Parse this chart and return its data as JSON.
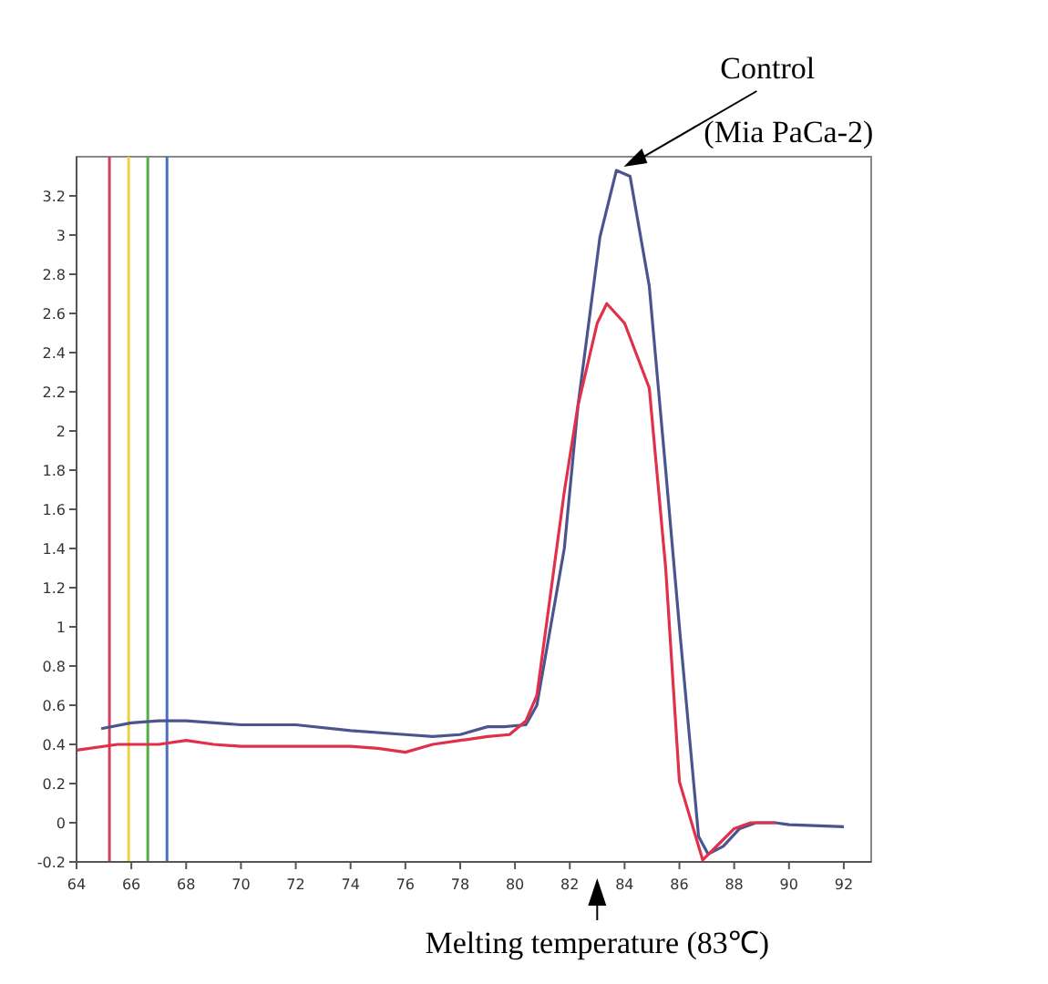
{
  "chart_data": {
    "type": "line",
    "xlim": [
      64,
      93
    ],
    "ylim": [
      -0.2,
      3.4
    ],
    "xticks": [
      64,
      66,
      68,
      70,
      72,
      74,
      76,
      78,
      80,
      82,
      84,
      86,
      88,
      90,
      92
    ],
    "yticks": [
      -0.2,
      0,
      0.2,
      0.4,
      0.6,
      0.8,
      1,
      1.2,
      1.4,
      1.6,
      1.8,
      2,
      2.2,
      2.4,
      2.6,
      2.8,
      3,
      3.2
    ],
    "grid": false,
    "line_style": "solid",
    "series": [
      {
        "color": "#4a5590",
        "x": [
          64.9,
          66,
          67,
          68,
          70,
          72,
          74,
          76,
          77,
          78,
          79,
          79.6,
          80.4,
          80.8,
          81.8,
          82.3,
          83.1,
          83.7,
          84.2,
          84.9,
          85.5,
          86,
          86.7,
          87.05,
          87.6,
          88.2,
          88.8,
          89.5,
          90,
          92
        ],
        "values": [
          0.48,
          0.51,
          0.52,
          0.52,
          0.5,
          0.5,
          0.47,
          0.45,
          0.44,
          0.45,
          0.49,
          0.49,
          0.5,
          0.6,
          1.4,
          2.13,
          2.99,
          3.33,
          3.3,
          2.74,
          1.8,
          1.0,
          -0.07,
          -0.16,
          -0.12,
          -0.03,
          0,
          0,
          -0.01,
          -0.02
        ]
      },
      {
        "color": "#e0304a",
        "x": [
          64,
          65.5,
          67,
          68,
          69,
          70,
          72,
          74,
          75,
          76,
          77,
          78,
          79,
          79.8,
          80.4,
          80.8,
          81.8,
          82.3,
          83,
          83.35,
          84,
          84.9,
          85.5,
          86,
          86.85,
          87.5,
          88,
          88.6,
          89.5
        ],
        "values": [
          0.37,
          0.4,
          0.4,
          0.42,
          0.4,
          0.39,
          0.39,
          0.39,
          0.38,
          0.36,
          0.4,
          0.42,
          0.44,
          0.45,
          0.52,
          0.65,
          1.69,
          2.13,
          2.55,
          2.65,
          2.55,
          2.22,
          1.3,
          0.21,
          -0.19,
          -0.1,
          -0.03,
          0,
          0
        ]
      }
    ],
    "ref_lines": [
      {
        "axis": "x",
        "value": 65.2,
        "color": "#d04060"
      },
      {
        "axis": "x",
        "value": 65.9,
        "color": "#f0d040"
      },
      {
        "axis": "x",
        "value": 66.6,
        "color": "#50b040"
      },
      {
        "axis": "x",
        "value": 67.3,
        "color": "#4a70c0"
      }
    ],
    "annotations": [
      {
        "text": "Control\n(Mia PaCa-2)",
        "x": 83.7,
        "y": 3.33
      },
      {
        "text": "Melting temperature (83℃)",
        "x": 83
      }
    ]
  }
}
